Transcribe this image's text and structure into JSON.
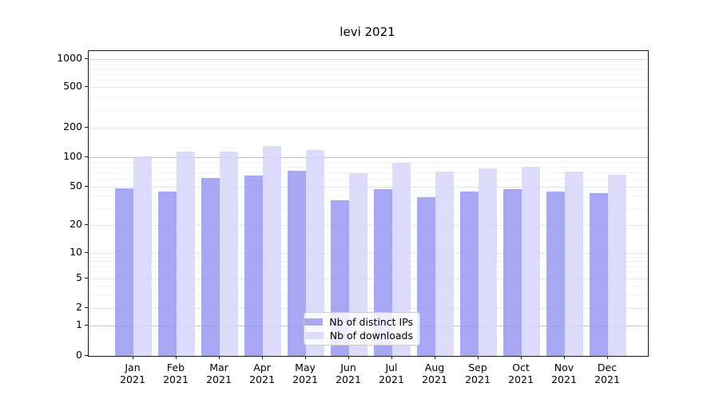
{
  "chart_data": {
    "type": "bar",
    "title": "levi 2021",
    "categories": [
      "Jan",
      "Feb",
      "Mar",
      "Apr",
      "May",
      "Jun",
      "Jul",
      "Aug",
      "Sep",
      "Oct",
      "Nov",
      "Dec"
    ],
    "year_label": "2021",
    "series": [
      {
        "name": "Nb of distinct IPs",
        "color": "#9b9bf2",
        "values": [
          48,
          44,
          61,
          65,
          72,
          36,
          47,
          39,
          44,
          47,
          44,
          43
        ]
      },
      {
        "name": "Nb of downloads",
        "color": "#d7d7f9",
        "values": [
          102,
          114,
          115,
          130,
          118,
          68,
          88,
          71,
          77,
          79,
          71,
          66
        ]
      }
    ],
    "yticks": [
      0,
      1,
      2,
      5,
      10,
      20,
      50,
      100,
      200,
      500,
      1000
    ],
    "ylim": [
      0,
      1300
    ],
    "scale": "symlog",
    "grid": true,
    "grid_colors": {
      "minor": "#f2f2f2",
      "major": "#e4e4e4",
      "one": "#c6c6c6",
      "hundred": "#bcbcbc",
      "thousand": "#d9d9d9"
    },
    "legend_position": "lower center"
  }
}
